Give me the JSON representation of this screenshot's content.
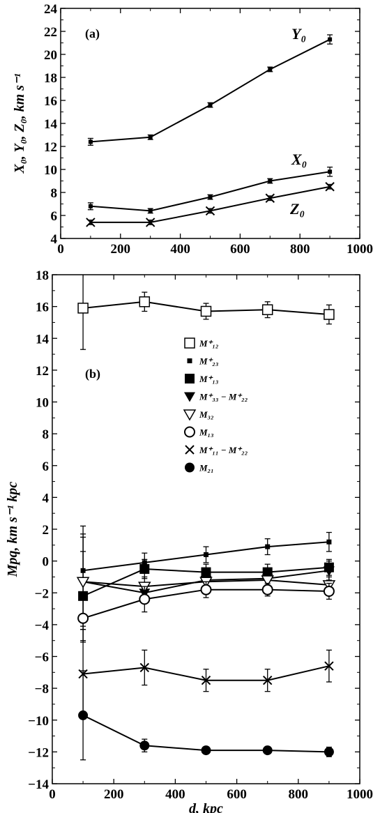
{
  "chart_data": [
    {
      "type": "line",
      "panel_label": "(a)",
      "xlim": [
        0,
        1000
      ],
      "ylim": [
        4,
        24
      ],
      "x_ticks": [
        0,
        200,
        400,
        600,
        800,
        1000
      ],
      "y_ticks": [
        4,
        6,
        8,
        10,
        12,
        14,
        16,
        18,
        20,
        22,
        24
      ],
      "xlabel": "",
      "ylabel": "X₀, Y₀, Z₀, km s⁻¹",
      "x": [
        100,
        300,
        500,
        700,
        900
      ],
      "series": [
        {
          "name": "Y₀",
          "marker": "dot",
          "values": [
            12.4,
            12.8,
            15.6,
            18.7,
            21.3
          ],
          "errors": [
            0.3,
            0.2,
            0.2,
            0.2,
            0.4
          ]
        },
        {
          "name": "X₀",
          "marker": "dot",
          "values": [
            6.8,
            6.4,
            7.6,
            9.0,
            9.8
          ],
          "errors": [
            0.3,
            0.2,
            0.2,
            0.2,
            0.4
          ]
        },
        {
          "name": "Z₀",
          "marker": "x",
          "values": [
            5.4,
            5.4,
            6.4,
            7.5,
            8.5
          ],
          "errors": [
            0.2,
            0.2,
            0.2,
            0.2,
            0.2
          ]
        }
      ],
      "grid": false
    },
    {
      "type": "line",
      "panel_label": "(b)",
      "xlim": [
        0,
        1000
      ],
      "ylim": [
        -14,
        18
      ],
      "x_ticks": [
        0,
        200,
        400,
        600,
        800,
        1000
      ],
      "y_ticks": [
        -14,
        -12,
        -10,
        -8,
        -6,
        -4,
        -2,
        0,
        2,
        4,
        6,
        8,
        10,
        12,
        14,
        16,
        18
      ],
      "xlabel": "d, kpc",
      "ylabel": "Mpq, km s⁻¹ kpc",
      "x": [
        100,
        300,
        500,
        700,
        900
      ],
      "legend_position": "center",
      "series": [
        {
          "name": "M⁺₁₂",
          "marker": "open-square",
          "values": [
            15.9,
            16.3,
            15.7,
            15.8,
            15.5
          ],
          "errors": [
            2.6,
            0.6,
            0.5,
            0.5,
            0.6
          ]
        },
        {
          "name": "M⁺₂₃",
          "marker": "small-square",
          "values": [
            -0.6,
            -0.1,
            0.4,
            0.9,
            1.2
          ],
          "errors": [
            2.8,
            0.6,
            0.5,
            0.5,
            0.6
          ]
        },
        {
          "name": "M⁺₁₃",
          "marker": "filled-square",
          "values": [
            -2.2,
            -0.5,
            -0.7,
            -0.7,
            -0.4
          ],
          "errors": [
            2.8,
            0.6,
            0.5,
            0.5,
            0.5
          ]
        },
        {
          "name": "M⁺₃₃ − M⁺₂₂",
          "marker": "filled-triangle",
          "values": [
            -1.3,
            -2.0,
            -1.2,
            -1.1,
            -0.6
          ],
          "errors": [
            3.0,
            0.6,
            0.4,
            0.4,
            0.6
          ]
        },
        {
          "name": "M₃₂",
          "marker": "open-triangle",
          "values": [
            -1.3,
            -1.6,
            -1.3,
            -1.2,
            -1.5
          ],
          "errors": [
            2.8,
            0.6,
            0.4,
            0.4,
            0.5
          ]
        },
        {
          "name": "M₁₃",
          "marker": "open-circle",
          "values": [
            -3.6,
            -2.4,
            -1.8,
            -1.8,
            -1.9
          ],
          "errors": [
            1.5,
            0.8,
            0.5,
            0.4,
            0.5
          ]
        },
        {
          "name": "M⁺₁₁ − M⁺₂₂",
          "marker": "x",
          "values": [
            -7.1,
            -6.7,
            -7.5,
            -7.5,
            -6.6
          ],
          "errors": [
            2.8,
            1.1,
            0.7,
            0.7,
            1.0
          ]
        },
        {
          "name": "M₂₁",
          "marker": "filled-circle",
          "values": [
            -9.7,
            -11.6,
            -11.9,
            -11.9,
            -12.0
          ],
          "errors": [
            2.8,
            0.4,
            0.2,
            0.2,
            0.3
          ]
        }
      ],
      "grid": false
    }
  ]
}
